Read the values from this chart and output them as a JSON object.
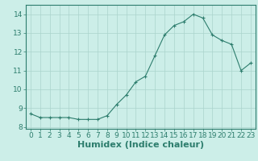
{
  "x": [
    0,
    1,
    2,
    3,
    4,
    5,
    6,
    7,
    8,
    9,
    10,
    11,
    12,
    13,
    14,
    15,
    16,
    17,
    18,
    19,
    20,
    21,
    22,
    23
  ],
  "y": [
    8.7,
    8.5,
    8.5,
    8.5,
    8.5,
    8.4,
    8.4,
    8.4,
    8.6,
    9.2,
    9.7,
    10.4,
    10.7,
    11.8,
    12.9,
    13.4,
    13.6,
    14.0,
    13.8,
    12.9,
    12.6,
    12.4,
    11.0,
    11.4
  ],
  "xlabel": "Humidex (Indice chaleur)",
  "xlim": [
    -0.5,
    23.5
  ],
  "ylim": [
    7.9,
    14.5
  ],
  "yticks": [
    8,
    9,
    10,
    11,
    12,
    13,
    14
  ],
  "xticks": [
    0,
    1,
    2,
    3,
    4,
    5,
    6,
    7,
    8,
    9,
    10,
    11,
    12,
    13,
    14,
    15,
    16,
    17,
    18,
    19,
    20,
    21,
    22,
    23
  ],
  "line_color": "#2d7d6d",
  "bg_color": "#cceee8",
  "grid_color": "#aad4cc",
  "tick_label_fontsize": 6.5,
  "xlabel_fontsize": 8
}
